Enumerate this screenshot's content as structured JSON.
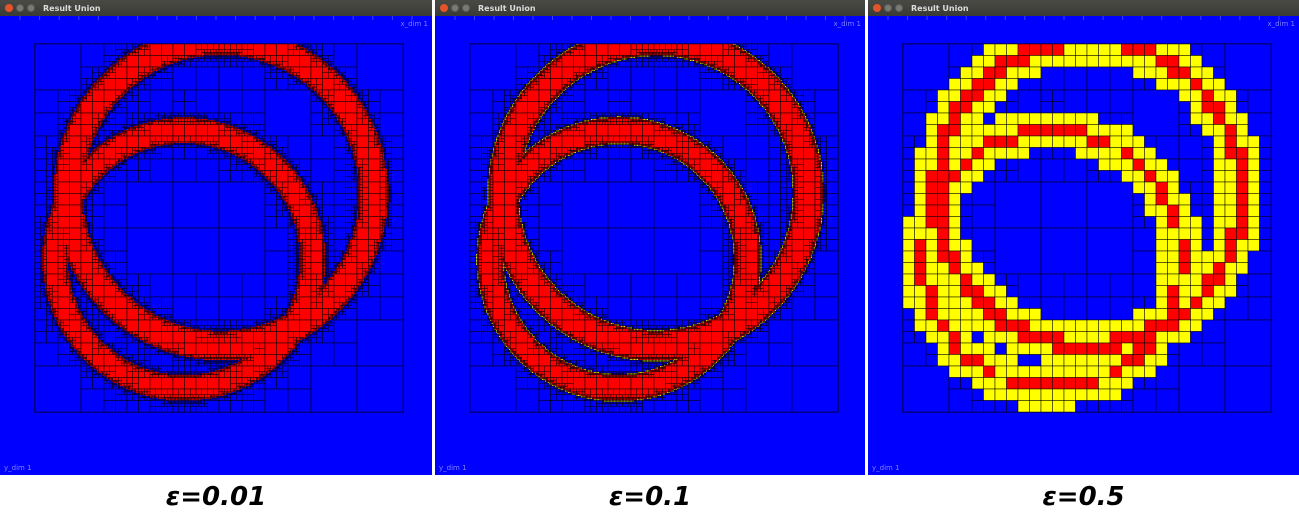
{
  "panels": [
    {
      "window_title": "Result Union",
      "corner_label": "x_dim 1",
      "bottom_label": "y_dim 1",
      "caption": "ε=0.01",
      "epsilon": 0.01
    },
    {
      "window_title": "Result Union",
      "corner_label": "x_dim 1",
      "bottom_label": "y_dim 1",
      "caption": "ε=0.1",
      "epsilon": 0.1
    },
    {
      "window_title": "Result Union",
      "corner_label": "x_dim 1",
      "bottom_label": "y_dim 1",
      "caption": "ε=0.5",
      "epsilon": 0.5
    }
  ],
  "colors": {
    "background": "#0000ff",
    "inside": "#ff0000",
    "boundary": "#ffff00",
    "grid": "#000000",
    "titlebar": "#3c3b37",
    "close_button": "#e3542a"
  },
  "icons": [
    "close-icon",
    "minimize-icon",
    "maximize-icon"
  ]
}
